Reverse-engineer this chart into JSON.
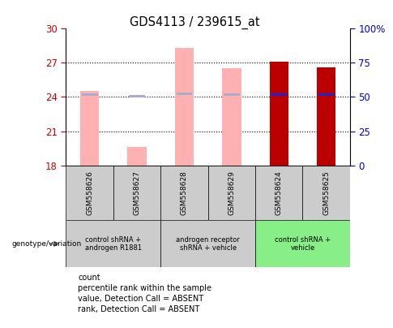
{
  "title": "GDS4113 / 239615_at",
  "samples": [
    "GSM558626",
    "GSM558627",
    "GSM558628",
    "GSM558629",
    "GSM558624",
    "GSM558625"
  ],
  "bar_values": [
    24.55,
    19.65,
    28.3,
    26.55,
    27.05,
    26.6
  ],
  "bar_colors": [
    "#ffb0b0",
    "#ffb0b0",
    "#ffb0b0",
    "#ffb0b0",
    "#bb0000",
    "#bb0000"
  ],
  "rank_values": [
    24.2,
    24.05,
    24.3,
    24.2,
    24.2,
    24.2
  ],
  "rank_absent_color": "#aaaacc",
  "rank_present_color": "#2222cc",
  "ylim_left": [
    18,
    30
  ],
  "ylim_right": [
    0,
    100
  ],
  "yticks_left": [
    18,
    21,
    24,
    27,
    30
  ],
  "yticks_right": [
    0,
    25,
    50,
    75,
    100
  ],
  "ytick_labels_left": [
    "18",
    "21",
    "24",
    "27",
    "30"
  ],
  "ytick_labels_right": [
    "0",
    "25",
    "50",
    "75",
    "100%"
  ],
  "left_tick_color": "#cc0000",
  "right_tick_color": "#0000cc",
  "gridlines": [
    21,
    24,
    27
  ],
  "groups": [
    {
      "label": "control shRNA +\nandrogen R1881",
      "samples": [
        0,
        1
      ],
      "color": "#cccccc"
    },
    {
      "label": "androgen receptor\nshRNA + vehicle",
      "samples": [
        2,
        3
      ],
      "color": "#cccccc"
    },
    {
      "label": "control shRNA +\nvehicle",
      "samples": [
        4,
        5
      ],
      "color": "#88ee88"
    }
  ],
  "legend_items": [
    {
      "label": "count",
      "color": "#bb0000"
    },
    {
      "label": "percentile rank within the sample",
      "color": "#2222cc"
    },
    {
      "label": "value, Detection Call = ABSENT",
      "color": "#ffb0b0"
    },
    {
      "label": "rank, Detection Call = ABSENT",
      "color": "#aaaacc"
    }
  ],
  "bar_width": 0.4,
  "n_absent": 4
}
